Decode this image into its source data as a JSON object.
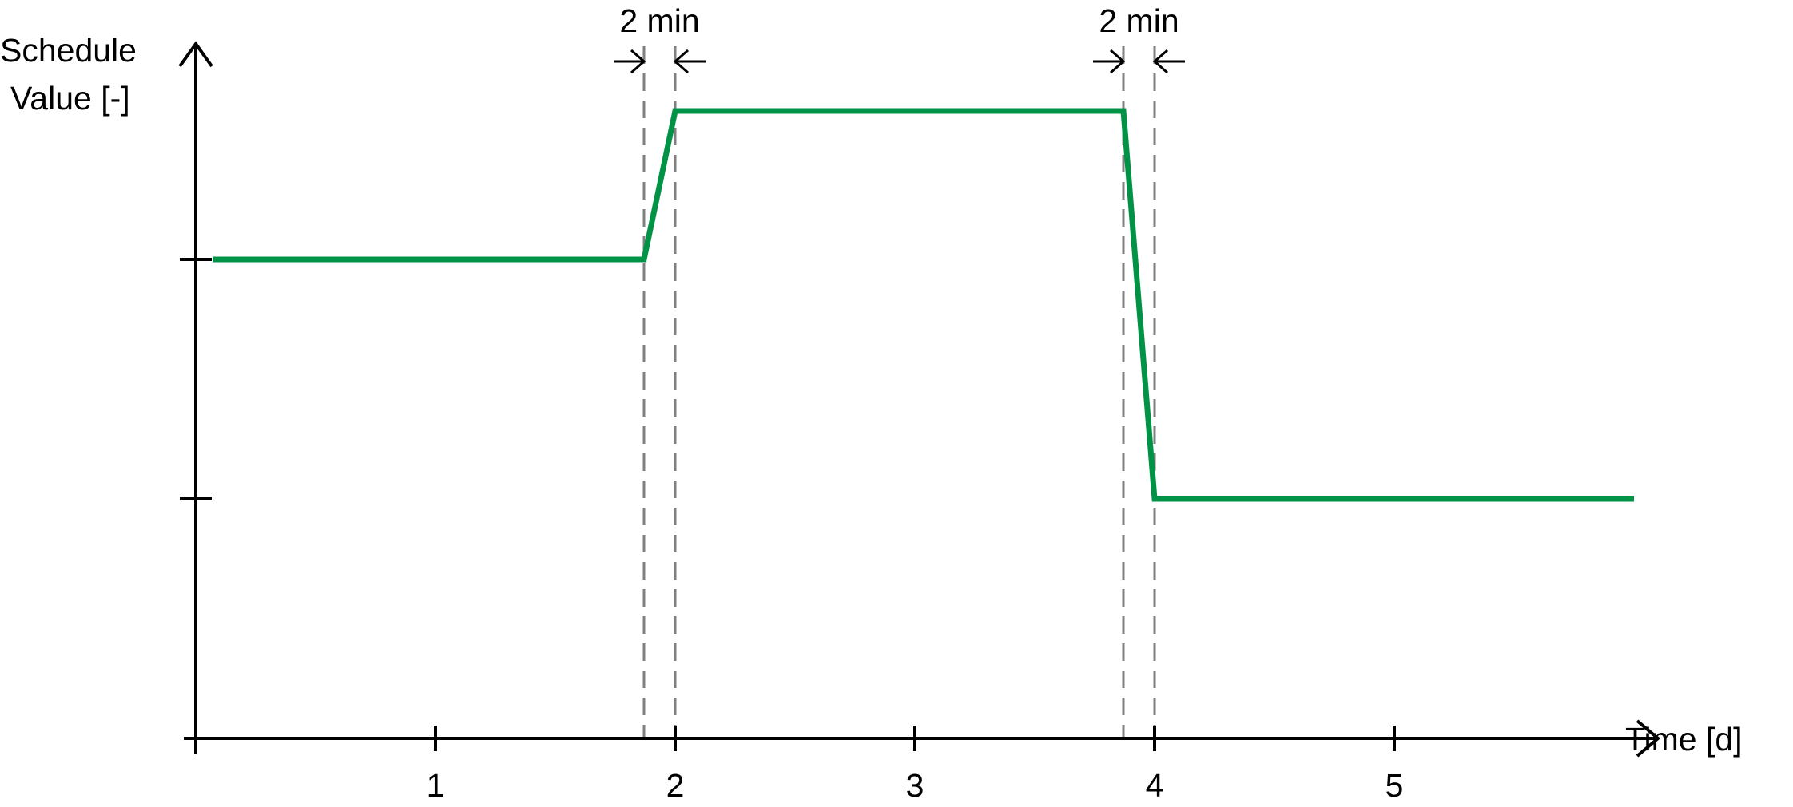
{
  "chart_data": {
    "type": "line",
    "title": "",
    "ylabel_lines": [
      "Schedule",
      "Value [-]"
    ],
    "xlabel": "Time [d]",
    "x_ticks": [
      1,
      2,
      3,
      4,
      5
    ],
    "x_tick_labels": [
      "1",
      "2",
      "3",
      "4",
      "5"
    ],
    "xlim": [
      0,
      6.1
    ],
    "y_ticks": [
      1,
      2
    ],
    "ylim": [
      0,
      2.9
    ],
    "grid": false,
    "series": [
      {
        "color": "#009245",
        "x": [
          0.07,
          1.87,
          2.0,
          3.87,
          4.0,
          6.0
        ],
        "y": [
          2.0,
          2.0,
          2.62,
          2.62,
          1.0,
          1.0
        ]
      }
    ],
    "guides_x": [
      1.87,
      2.0,
      3.87,
      4.0
    ],
    "annotations": [
      {
        "text": "2 min",
        "x_from": 1.87,
        "x_to": 2.0
      },
      {
        "text": "2 min",
        "x_from": 3.87,
        "x_to": 4.0
      }
    ]
  }
}
